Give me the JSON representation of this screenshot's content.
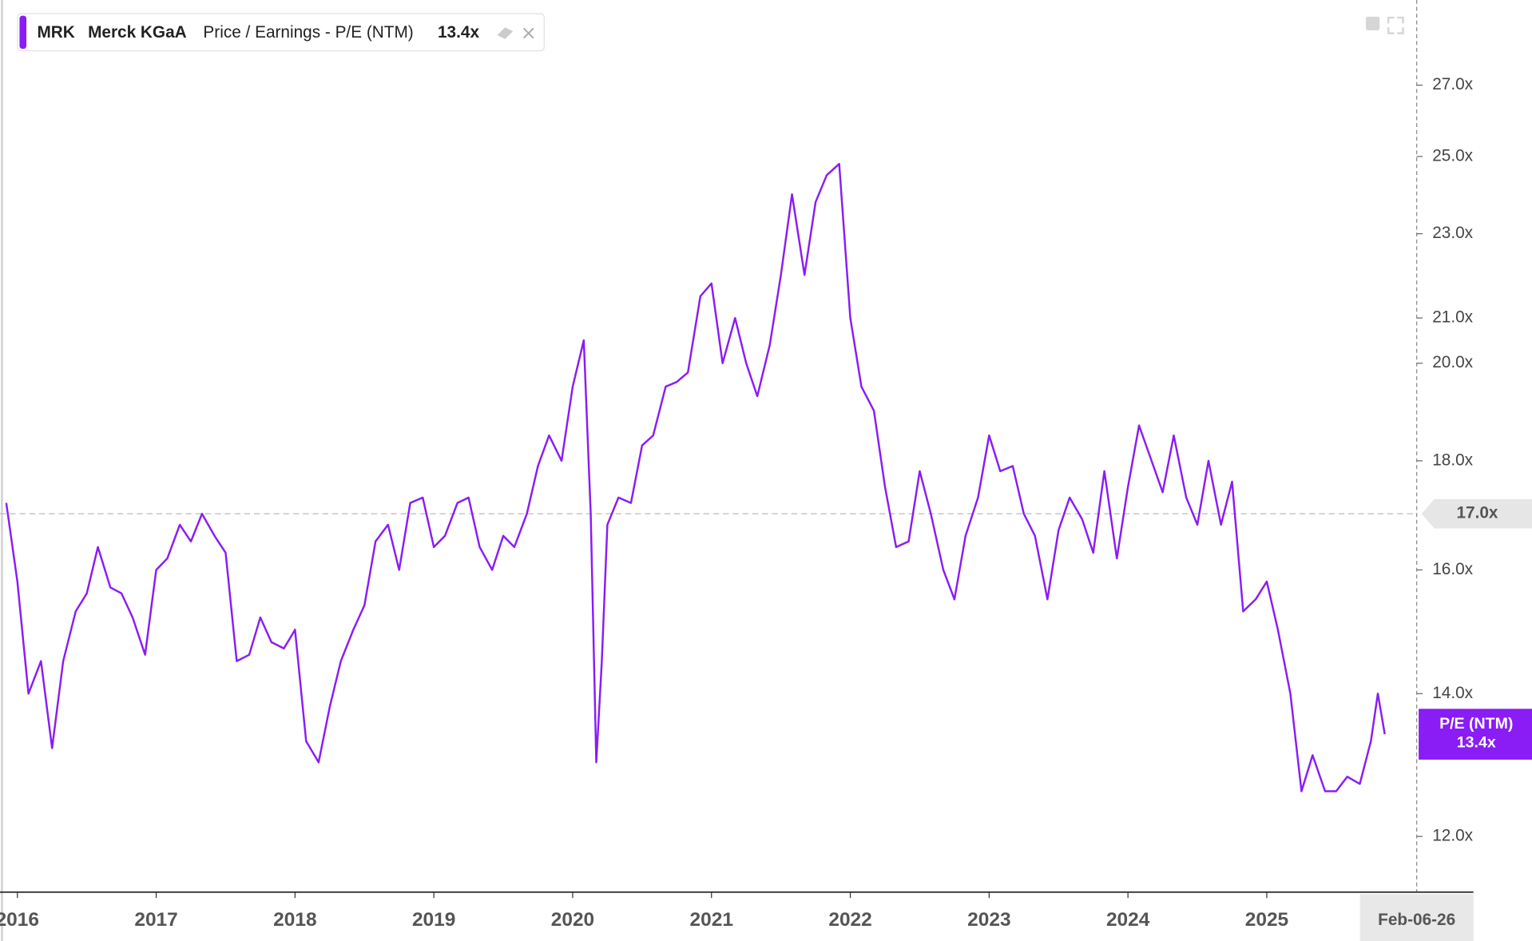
{
  "chart_data": {
    "type": "line",
    "ticker": "MRK",
    "company": "Merck KGaA",
    "metric": "Price / Earnings - P/E (NTM)",
    "current": {
      "value": 13.4,
      "label": "13.4x"
    },
    "x_end_label": "Feb-06-26",
    "reference": {
      "value": 17.0,
      "label": "17.0x"
    },
    "log_scale": true,
    "xlim": [
      2015.91,
      2026.08
    ],
    "ylim": [
      11.3,
      29.6
    ],
    "xticks": [
      2016,
      2017,
      2018,
      2019,
      2020,
      2021,
      2022,
      2023,
      2024,
      2025
    ],
    "yticks": [
      {
        "value": 12,
        "label": "12.0x"
      },
      {
        "value": 14,
        "label": "14.0x"
      },
      {
        "value": 16,
        "label": "16.0x"
      },
      {
        "value": 18,
        "label": "18.0x"
      },
      {
        "value": 20,
        "label": "20.0x"
      },
      {
        "value": 21,
        "label": "21.0x"
      },
      {
        "value": 23,
        "label": "23.0x"
      },
      {
        "value": 25,
        "label": "25.0x"
      },
      {
        "value": 27,
        "label": "27.0x"
      }
    ],
    "x": [
      2015.92,
      2016,
      2016.08,
      2016.17,
      2016.25,
      2016.33,
      2016.42,
      2016.5,
      2016.58,
      2016.67,
      2016.75,
      2016.83,
      2016.92,
      2017,
      2017.08,
      2017.17,
      2017.25,
      2017.33,
      2017.42,
      2017.5,
      2017.58,
      2017.67,
      2017.75,
      2017.83,
      2017.92,
      2018,
      2018.08,
      2018.17,
      2018.25,
      2018.33,
      2018.42,
      2018.5,
      2018.58,
      2018.67,
      2018.75,
      2018.83,
      2018.92,
      2019,
      2019.08,
      2019.17,
      2019.25,
      2019.33,
      2019.42,
      2019.5,
      2019.58,
      2019.67,
      2019.75,
      2019.83,
      2019.92,
      2020,
      2020.08,
      2020.13,
      2020.17,
      2020.21,
      2020.25,
      2020.33,
      2020.42,
      2020.5,
      2020.58,
      2020.67,
      2020.75,
      2020.83,
      2020.92,
      2021,
      2021.08,
      2021.17,
      2021.25,
      2021.33,
      2021.42,
      2021.5,
      2021.58,
      2021.67,
      2021.75,
      2021.83,
      2021.92,
      2022,
      2022.08,
      2022.17,
      2022.25,
      2022.33,
      2022.42,
      2022.5,
      2022.58,
      2022.67,
      2022.75,
      2022.83,
      2022.92,
      2023,
      2023.08,
      2023.17,
      2023.25,
      2023.33,
      2023.42,
      2023.5,
      2023.58,
      2023.67,
      2023.75,
      2023.83,
      2023.92,
      2024,
      2024.08,
      2024.17,
      2024.25,
      2024.33,
      2024.42,
      2024.5,
      2024.58,
      2024.67,
      2024.75,
      2024.83,
      2024.92,
      2025,
      2025.08,
      2025.17,
      2025.25,
      2025.33,
      2025.42,
      2025.5,
      2025.58,
      2025.67,
      2025.75,
      2025.8,
      2025.85
    ],
    "series": [
      {
        "name": "P/E (NTM)",
        "color": "#8a1cf5",
        "values": [
          17.2,
          15.8,
          14.0,
          14.5,
          13.2,
          14.5,
          15.3,
          15.6,
          16.4,
          15.7,
          15.6,
          15.2,
          14.6,
          16.0,
          16.2,
          16.8,
          16.5,
          17.0,
          16.6,
          16.3,
          14.5,
          14.6,
          15.2,
          14.8,
          14.7,
          15.0,
          13.3,
          13.0,
          13.8,
          14.5,
          15.0,
          15.4,
          16.5,
          16.8,
          16.0,
          17.2,
          17.3,
          16.4,
          16.6,
          17.2,
          17.3,
          16.4,
          16.0,
          16.6,
          16.4,
          17.0,
          17.9,
          18.5,
          18.0,
          19.5,
          20.5,
          17.0,
          13.0,
          14.5,
          16.8,
          17.3,
          17.2,
          18.3,
          18.5,
          19.5,
          19.6,
          19.8,
          21.5,
          21.8,
          20.0,
          21.0,
          20.0,
          19.3,
          20.4,
          22.0,
          24.0,
          22.0,
          23.8,
          24.5,
          24.8,
          21.0,
          19.5,
          19.0,
          17.5,
          16.4,
          16.5,
          17.8,
          17.0,
          16.0,
          15.5,
          16.6,
          17.3,
          18.5,
          17.8,
          17.9,
          17.0,
          16.6,
          15.5,
          16.7,
          17.3,
          16.9,
          16.3,
          17.8,
          16.2,
          17.5,
          18.7,
          18.0,
          17.4,
          18.5,
          17.3,
          16.8,
          18.0,
          16.8,
          17.6,
          15.3,
          15.5,
          15.8,
          15.0,
          14.0,
          12.6,
          13.1,
          12.6,
          12.6,
          12.8,
          12.7,
          13.3,
          14.0,
          13.4
        ]
      }
    ]
  }
}
